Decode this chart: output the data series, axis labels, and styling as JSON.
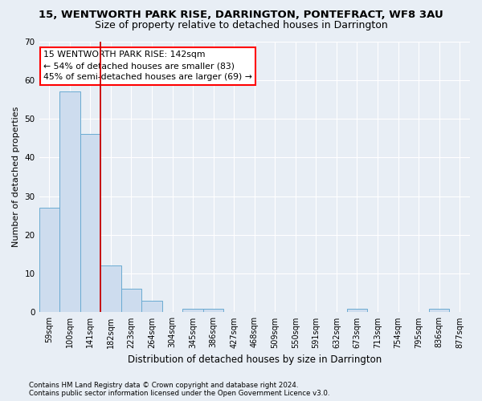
{
  "title": "15, WENTWORTH PARK RISE, DARRINGTON, PONTEFRACT, WF8 3AU",
  "subtitle": "Size of property relative to detached houses in Darrington",
  "xlabel": "Distribution of detached houses by size in Darrington",
  "ylabel": "Number of detached properties",
  "bar_color": "#cddcee",
  "bar_edge_color": "#6aabd2",
  "categories": [
    "59sqm",
    "100sqm",
    "141sqm",
    "182sqm",
    "223sqm",
    "264sqm",
    "304sqm",
    "345sqm",
    "386sqm",
    "427sqm",
    "468sqm",
    "509sqm",
    "550sqm",
    "591sqm",
    "632sqm",
    "673sqm",
    "713sqm",
    "754sqm",
    "795sqm",
    "836sqm",
    "877sqm"
  ],
  "values": [
    27,
    57,
    46,
    12,
    6,
    3,
    0,
    1,
    1,
    0,
    0,
    0,
    0,
    0,
    0,
    1,
    0,
    0,
    0,
    1,
    0
  ],
  "ylim": [
    0,
    70
  ],
  "yticks": [
    0,
    10,
    20,
    30,
    40,
    50,
    60,
    70
  ],
  "red_line_index": 2,
  "annotation_line1": "15 WENTWORTH PARK RISE: 142sqm",
  "annotation_line2": "← 54% of detached houses are smaller (83)",
  "annotation_line3": "45% of semi-detached houses are larger (69) →",
  "footnote1": "Contains HM Land Registry data © Crown copyright and database right 2024.",
  "footnote2": "Contains public sector information licensed under the Open Government Licence v3.0.",
  "background_color": "#e8eef5",
  "grid_color": "#ffffff",
  "red_line_color": "#cc0000",
  "title_fontsize": 9.5,
  "subtitle_fontsize": 9,
  "tick_fontsize": 7,
  "ylabel_fontsize": 8,
  "xlabel_fontsize": 8.5
}
